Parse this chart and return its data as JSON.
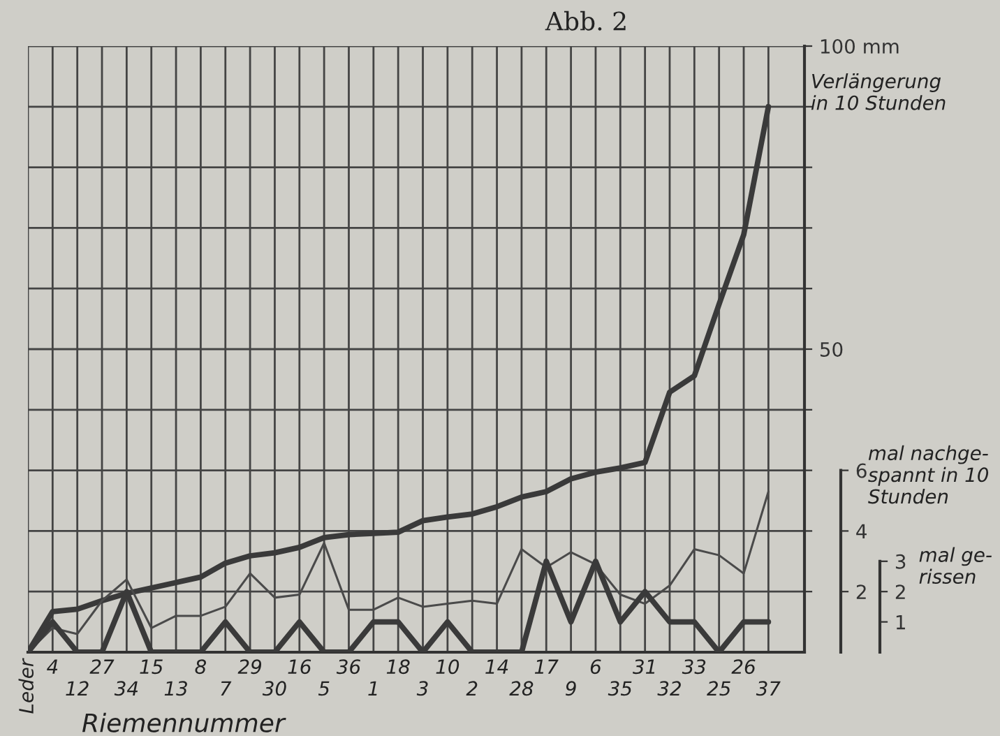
{
  "chart_data": {
    "type": "line",
    "title": "Abb. 2",
    "xlabel": "Riemennummer",
    "annotations": [
      "Verlängerung\nin 10 Stunden"
    ],
    "y2label": "mal nachge-\nspannt in 10\nStunden",
    "y3label": "mal ge-\nrissen",
    "categories": [
      "Leder",
      "4",
      "12",
      "27",
      "34",
      "15",
      "13",
      "8",
      "7",
      "29",
      "30",
      "16",
      "5",
      "36",
      "1",
      "18",
      "3",
      "10",
      "2",
      "14",
      "28",
      "17",
      "9",
      "6",
      "35",
      "31",
      "32",
      "33",
      "25",
      "26",
      "37"
    ],
    "series": [
      {
        "color": "#3a3a3a",
        "axis": "y",
        "values": [
          0,
          6.7,
          7.1,
          8.5,
          9.7,
          10.6,
          11.5,
          12.4,
          14.7,
          15.9,
          16.4,
          17.3,
          18.9,
          19.4,
          19.6,
          19.8,
          21.7,
          22.3,
          22.8,
          24.0,
          25.6,
          26.5,
          28.6,
          29.7,
          30.4,
          31.3,
          42.9,
          45.6,
          57.4,
          68.9,
          90
        ]
      },
      {
        "color": "#4a4a4a",
        "axis": "y2",
        "values": [
          0,
          0.8,
          0.6,
          1.7,
          2.4,
          0.8,
          1.2,
          1.2,
          1.5,
          2.6,
          1.8,
          1.9,
          3.6,
          1.4,
          1.4,
          1.8,
          1.5,
          1.6,
          1.7,
          1.6,
          3.4,
          2.8,
          3.3,
          2.9,
          1.9,
          1.6,
          2.2,
          3.4,
          3.2,
          2.6,
          5.3
        ]
      },
      {
        "color": "#3a3a3a",
        "axis": "y3",
        "values": [
          0,
          1,
          0,
          0,
          2,
          0,
          0,
          0,
          1,
          0,
          0,
          1,
          0,
          0,
          1,
          1,
          0,
          1,
          0,
          0,
          0,
          3,
          1,
          3,
          1,
          2,
          1,
          1,
          0,
          1,
          1
        ]
      }
    ],
    "ylim": [
      0,
      100
    ],
    "yticks": [
      {
        "value": 10,
        "label": null
      },
      {
        "value": 20,
        "label": null
      },
      {
        "value": 30,
        "label": null
      },
      {
        "value": 40,
        "label": null
      },
      50,
      {
        "value": 60,
        "label": null
      },
      {
        "value": 70,
        "label": null
      },
      {
        "value": 80,
        "label": null
      },
      {
        "value": 90,
        "label": null
      },
      {
        "value": 100,
        "label": "100 mm"
      }
    ],
    "y2lim": [
      0,
      20
    ],
    "y2ticks": [
      2,
      4,
      6
    ],
    "y3lim": [
      0,
      20
    ],
    "y3ticks": [
      1,
      2,
      3
    ],
    "grid": true,
    "marker": "none",
    "line_style": "solid"
  }
}
